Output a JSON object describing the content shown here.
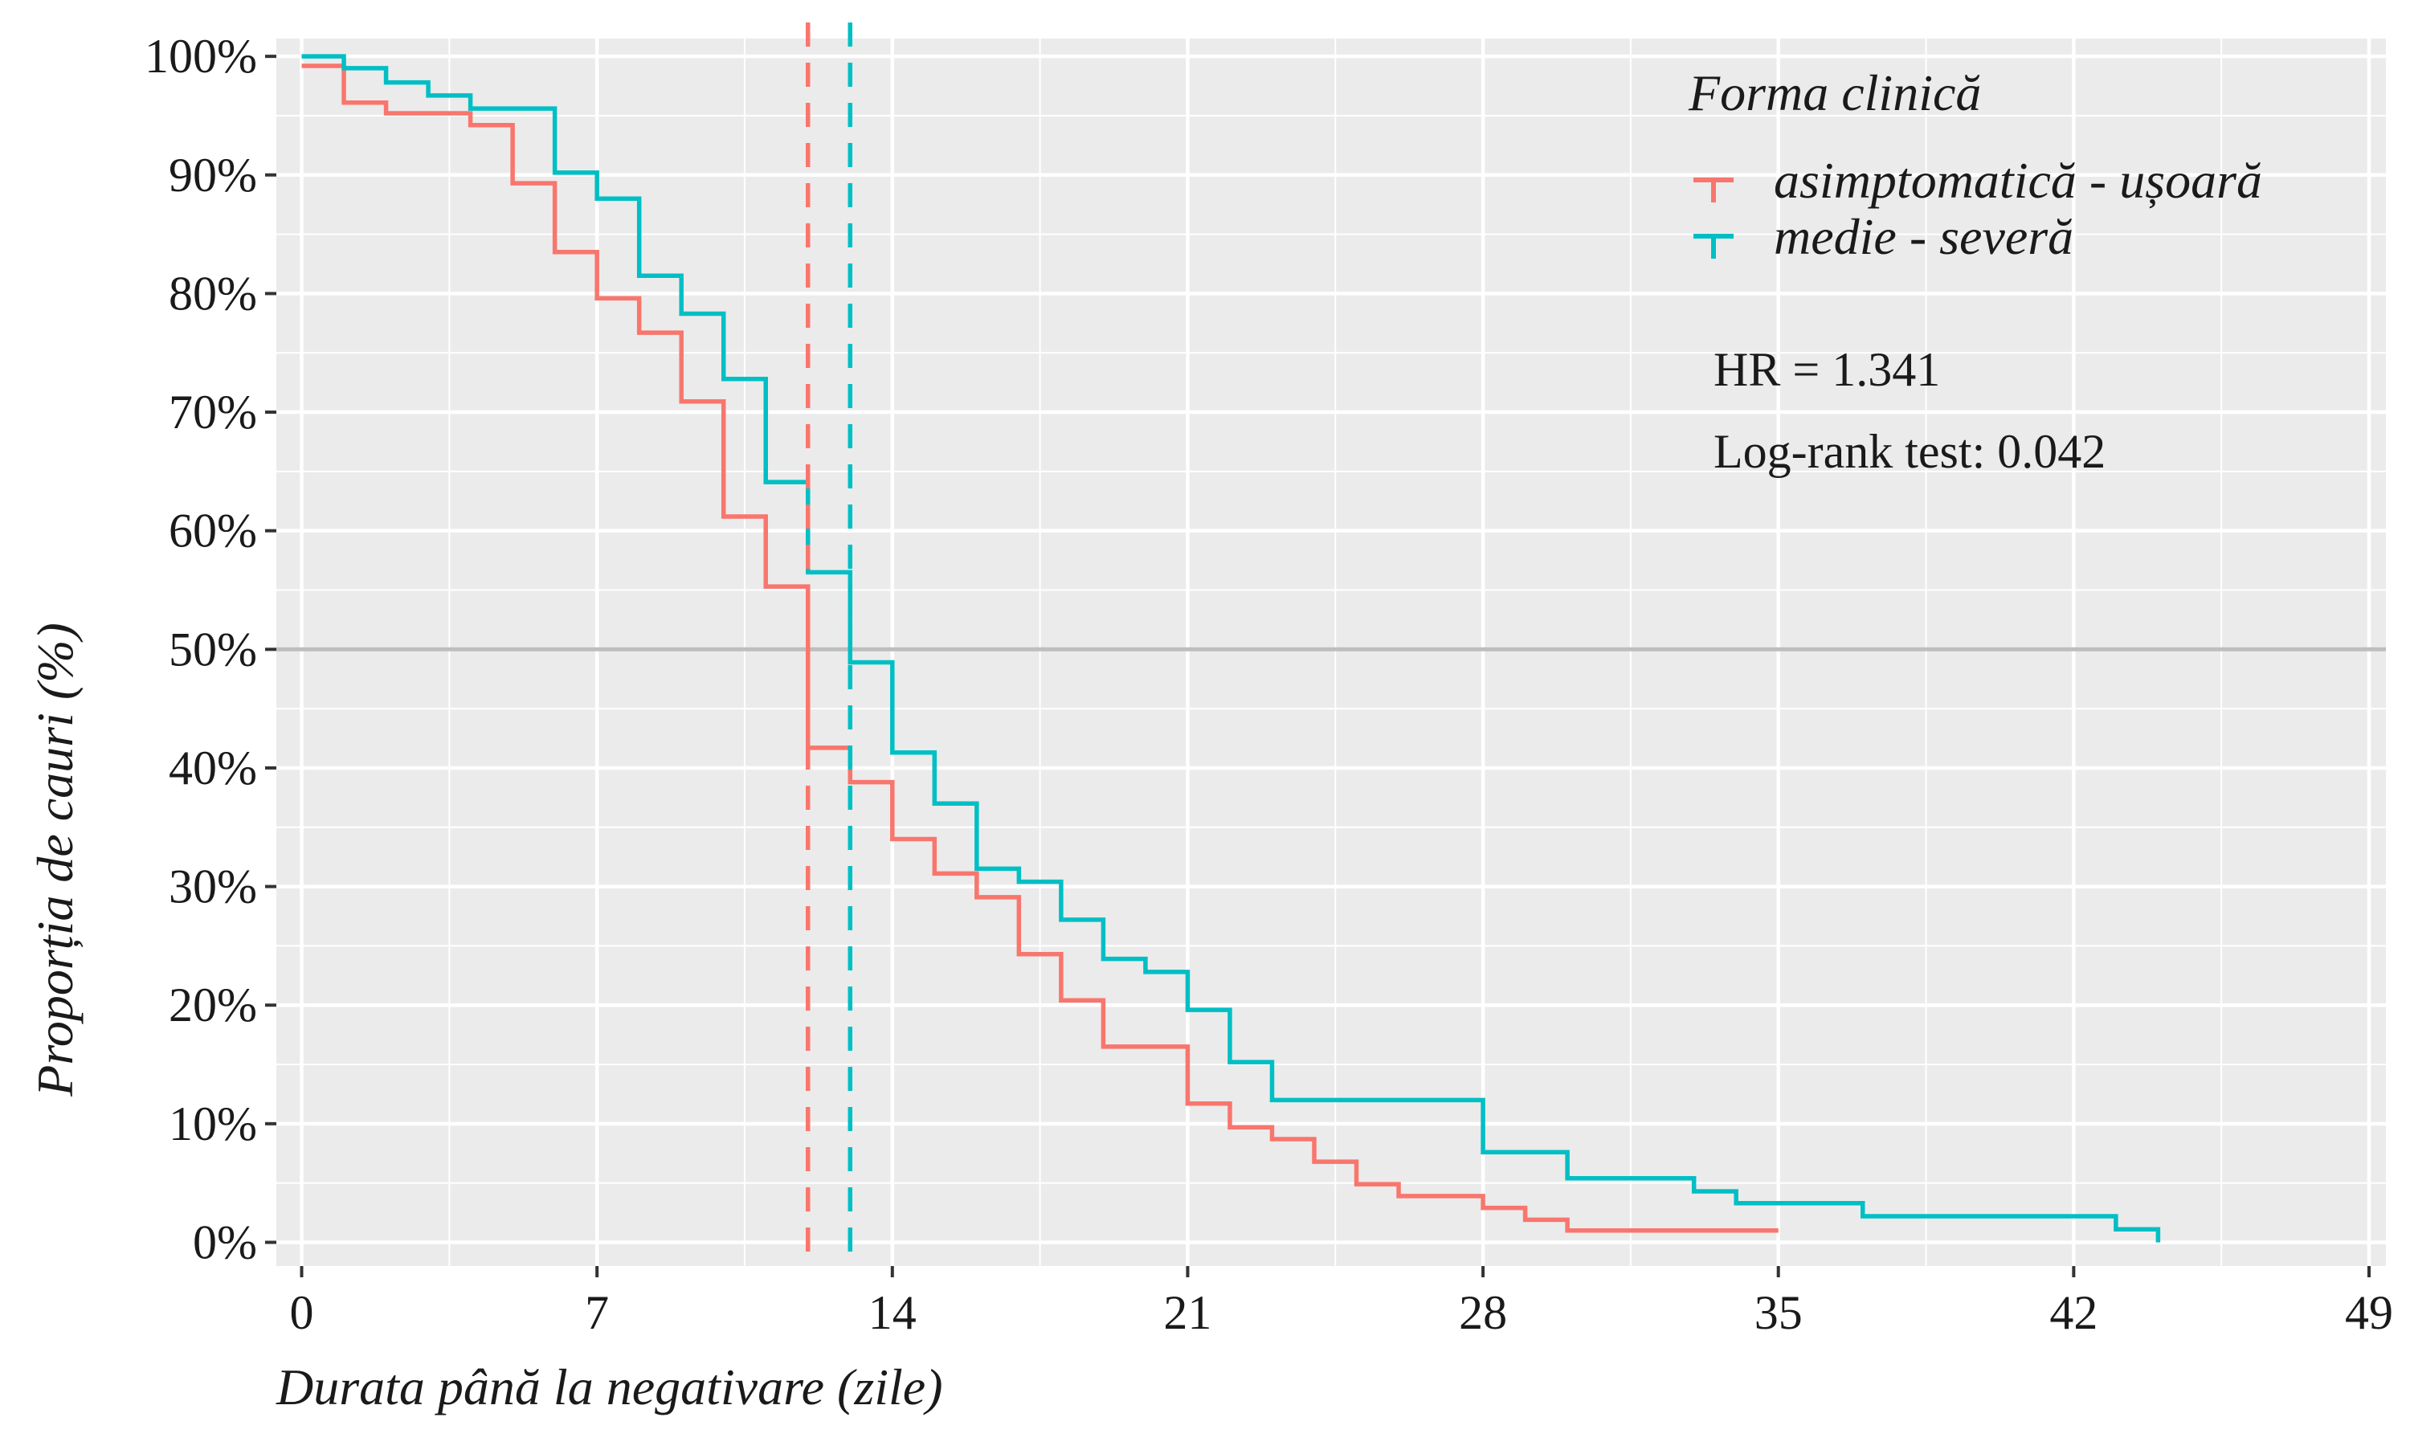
{
  "chart_data": {
    "type": "line",
    "step": true,
    "xlabel": "Durata până la negativare (zile)",
    "ylabel": "Proporția de cauri (%)",
    "xlim": [
      0,
      49
    ],
    "ylim": [
      0,
      100
    ],
    "x_ticks": [
      0,
      7,
      14,
      21,
      28,
      35,
      42,
      49
    ],
    "y_ticks": [
      0,
      10,
      20,
      30,
      40,
      50,
      60,
      70,
      80,
      90,
      100
    ],
    "y_tick_labels": [
      "0%",
      "10%",
      "20%",
      "30%",
      "40%",
      "50%",
      "60%",
      "70%",
      "80%",
      "90%",
      "100%"
    ],
    "grid": true,
    "reference_line_y": 50,
    "legend": {
      "title": "Forma clinică",
      "position": "top-right"
    },
    "series": [
      {
        "name": "asimptomatică - ușoară",
        "color": "#F8766D",
        "median": 12,
        "x": [
          0,
          1,
          2,
          4,
          5,
          6,
          7,
          8,
          9,
          10,
          11,
          12,
          13,
          14,
          15,
          16,
          17,
          18,
          19,
          21,
          22,
          23,
          24,
          25,
          26,
          28,
          29,
          30,
          35
        ],
        "y": [
          99.2,
          96.1,
          95.2,
          94.2,
          89.3,
          83.5,
          79.6,
          76.7,
          70.9,
          61.2,
          55.3,
          41.7,
          38.8,
          34.0,
          31.1,
          29.1,
          24.3,
          20.4,
          16.5,
          11.7,
          9.7,
          8.7,
          6.8,
          4.9,
          3.9,
          2.9,
          1.9,
          1.0,
          1.0
        ]
      },
      {
        "name": "medie - severă",
        "color": "#00BFC4",
        "median": 13,
        "x": [
          0,
          1,
          2,
          3,
          4,
          6,
          7,
          8,
          9,
          10,
          11,
          12,
          13,
          14,
          15,
          16,
          17,
          18,
          19,
          20,
          21,
          22,
          23,
          28,
          30,
          33,
          34,
          37,
          43,
          44
        ],
        "y": [
          100,
          99.0,
          97.8,
          96.7,
          95.6,
          90.2,
          88.0,
          81.5,
          78.3,
          72.8,
          64.1,
          56.5,
          48.9,
          41.3,
          37.0,
          31.5,
          30.4,
          27.2,
          23.9,
          22.8,
          19.6,
          15.2,
          12.0,
          7.6,
          5.4,
          4.3,
          3.3,
          2.2,
          1.1,
          0
        ]
      }
    ],
    "annotations": [
      "HR = 1.341",
      "Log-rank test: 0.042"
    ]
  }
}
